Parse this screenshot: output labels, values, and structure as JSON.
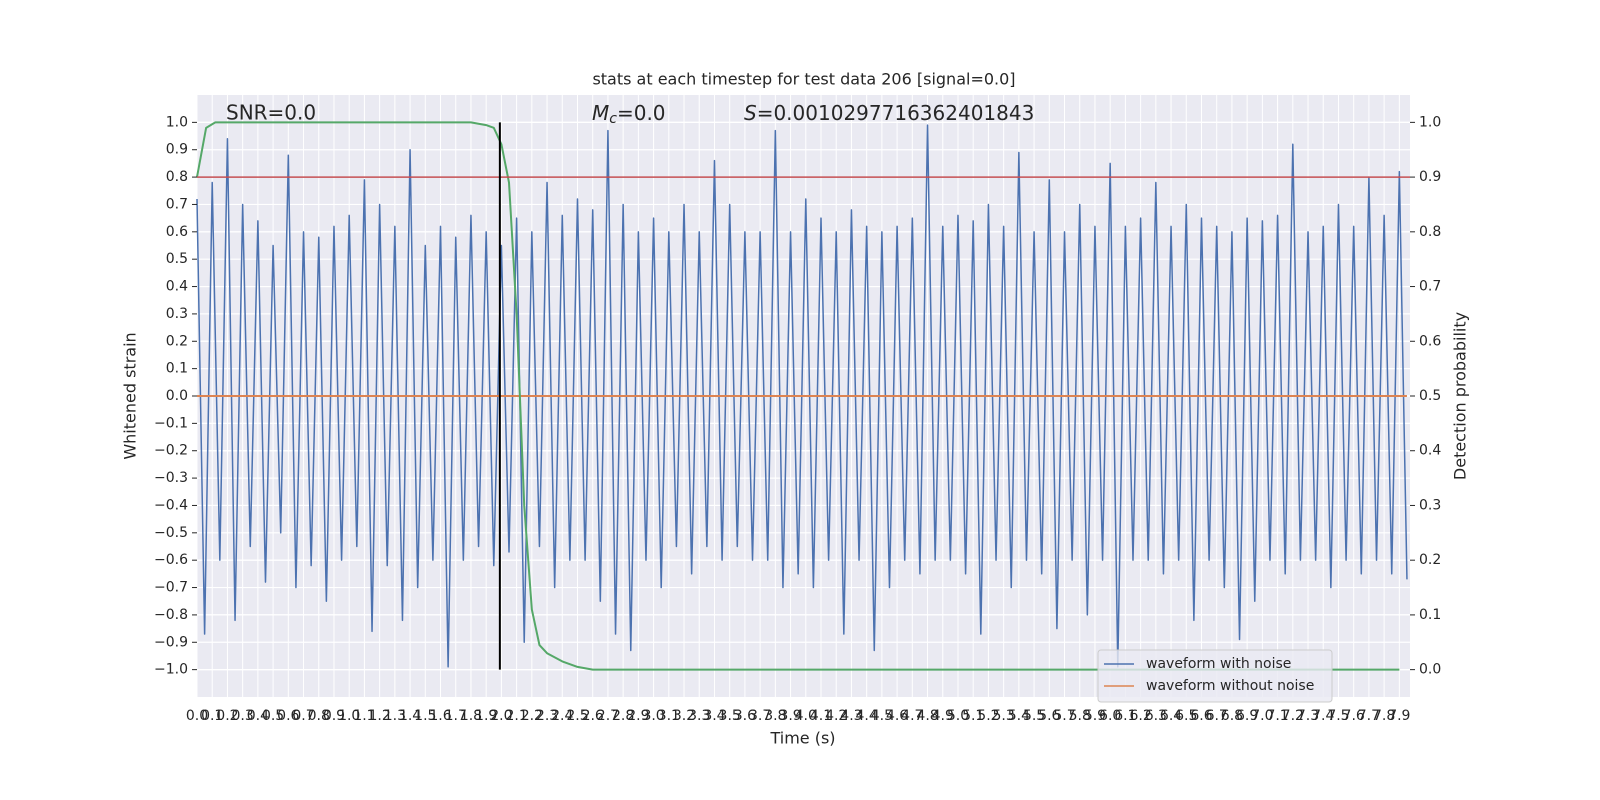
{
  "chart_data": {
    "type": "line",
    "title": "stats at each timestep for test data 206 [signal=0.0]",
    "xlabel": "Time (s)",
    "ylabel": "Whitened strain",
    "y2label": "Detection probability",
    "annotations": [
      "SNR=0.0",
      {
        "var": "M",
        "sub": "c",
        "rest": "=0.0"
      },
      {
        "var": "S",
        "rest": "=0.0010297716362401843"
      }
    ],
    "xlim": [
      0,
      7.97
    ],
    "ylim": [
      -1.1,
      1.1
    ],
    "y2lim": [
      -0.05,
      1.05
    ],
    "grid": true,
    "legend": "lower right",
    "xticks": [
      {
        "value": 0,
        "label": "0.0"
      },
      0.1,
      0.2,
      0.3,
      0.4,
      0.5,
      0.6,
      0.7,
      0.8,
      0.9,
      {
        "value": 1,
        "label": "1.0"
      },
      1.1,
      1.2,
      1.3,
      1.4,
      1.5,
      1.6,
      1.7,
      1.8,
      1.9,
      {
        "value": 2,
        "label": "2.0"
      },
      2.1,
      2.2,
      2.3,
      2.4,
      2.5,
      2.6,
      2.7,
      2.8,
      2.9,
      {
        "value": 3,
        "label": "3.0"
      },
      3.1,
      3.2,
      3.3,
      3.4,
      3.5,
      3.6,
      3.7,
      3.8,
      3.9,
      {
        "value": 4,
        "label": "4.0"
      },
      4.1,
      4.2,
      4.3,
      4.4,
      4.5,
      4.6,
      4.7,
      4.8,
      4.9,
      {
        "value": 5,
        "label": "5.0"
      },
      5.1,
      5.2,
      5.3,
      5.4,
      5.5,
      5.6,
      5.7,
      5.8,
      5.9,
      {
        "value": 6,
        "label": "6.0"
      },
      6.1,
      6.2,
      6.3,
      6.4,
      6.5,
      6.6,
      6.7,
      6.8,
      6.9,
      {
        "value": 7,
        "label": "7.0"
      },
      7.1,
      7.2,
      7.3,
      7.4,
      7.5,
      7.6,
      7.7,
      7.8,
      7.9
    ],
    "yticks": [
      {
        "value": -1,
        "label": "−1.0"
      },
      {
        "value": -0.9,
        "label": "−0.9"
      },
      {
        "value": -0.8,
        "label": "−0.8"
      },
      {
        "value": -0.7,
        "label": "−0.7"
      },
      {
        "value": -0.6,
        "label": "−0.6"
      },
      {
        "value": -0.5,
        "label": "−0.5"
      },
      {
        "value": -0.4,
        "label": "−0.4"
      },
      {
        "value": -0.3,
        "label": "−0.3"
      },
      {
        "value": -0.2,
        "label": "−0.2"
      },
      {
        "value": -0.1,
        "label": "−0.1"
      },
      {
        "value": 0,
        "label": "0.0"
      },
      0.1,
      0.2,
      0.3,
      0.4,
      0.5,
      0.6,
      0.7,
      0.8,
      0.9,
      {
        "value": 1,
        "label": "1.0"
      }
    ],
    "y2ticks": [
      {
        "value": 0,
        "label": "0.0"
      },
      0.1,
      0.2,
      0.3,
      0.4,
      0.5,
      0.6,
      0.7,
      0.8,
      0.9,
      {
        "value": 1,
        "label": "1.0"
      }
    ],
    "hlines": [
      {
        "y": 0.9,
        "axis": "y2",
        "color": "#c44e52"
      }
    ],
    "vlines": [
      {
        "x": 1.99,
        "ymin": -1,
        "ymax": 1,
        "color": "#000000"
      }
    ],
    "series": [
      {
        "name": "waveform with noise",
        "color": "#4c72b0",
        "x": [
          0,
          0.05,
          0.1,
          0.15,
          0.2,
          0.25,
          0.3,
          0.35,
          0.4,
          0.45,
          0.5,
          0.55,
          0.6,
          0.65,
          0.7,
          0.75,
          0.8,
          0.85,
          0.9,
          0.95,
          1,
          1.05,
          1.1,
          1.15,
          1.2,
          1.25,
          1.3,
          1.35,
          1.4,
          1.45,
          1.5,
          1.55,
          1.6,
          1.65,
          1.7,
          1.75,
          1.8,
          1.85,
          1.9,
          1.95,
          2,
          2.05,
          2.1,
          2.15,
          2.2,
          2.25,
          2.3,
          2.35,
          2.4,
          2.45,
          2.5,
          2.55,
          2.6,
          2.65,
          2.7,
          2.75,
          2.8,
          2.85,
          2.9,
          2.95,
          3,
          3.05,
          3.1,
          3.15,
          3.2,
          3.25,
          3.3,
          3.35,
          3.4,
          3.45,
          3.5,
          3.55,
          3.6,
          3.65,
          3.7,
          3.75,
          3.8,
          3.85,
          3.9,
          3.95,
          4,
          4.05,
          4.1,
          4.15,
          4.2,
          4.25,
          4.3,
          4.35,
          4.4,
          4.45,
          4.5,
          4.55,
          4.6,
          4.65,
          4.7,
          4.75,
          4.8,
          4.85,
          4.9,
          4.95,
          5,
          5.05,
          5.1,
          5.15,
          5.2,
          5.25,
          5.3,
          5.35,
          5.4,
          5.45,
          5.5,
          5.55,
          5.6,
          5.65,
          5.7,
          5.75,
          5.8,
          5.85,
          5.9,
          5.95,
          6,
          6.05,
          6.1,
          6.15,
          6.2,
          6.25,
          6.3,
          6.35,
          6.4,
          6.45,
          6.5,
          6.55,
          6.6,
          6.65,
          6.7,
          6.75,
          6.8,
          6.85,
          6.9,
          6.95,
          7,
          7.05,
          7.1,
          7.15,
          7.2,
          7.25,
          7.3,
          7.35,
          7.4,
          7.45,
          7.5,
          7.55,
          7.6,
          7.65,
          7.7,
          7.75,
          7.8,
          7.85,
          7.9,
          7.95
        ],
        "values": [
          0.72,
          -0.87,
          0.78,
          -0.6,
          0.94,
          -0.82,
          0.7,
          -0.55,
          0.64,
          -0.68,
          0.55,
          -0.5,
          0.88,
          -0.7,
          0.6,
          -0.62,
          0.58,
          -0.75,
          0.62,
          -0.6,
          0.66,
          -0.55,
          0.79,
          -0.86,
          0.7,
          -0.62,
          0.62,
          -0.82,
          0.9,
          -0.7,
          0.55,
          -0.6,
          0.62,
          -0.99,
          0.58,
          -0.6,
          0.66,
          -0.55,
          0.6,
          -0.62,
          0.55,
          -0.57,
          0.65,
          -0.9,
          0.6,
          -0.55,
          0.78,
          -0.7,
          0.66,
          -0.6,
          0.72,
          -0.6,
          0.68,
          -0.75,
          0.97,
          -0.87,
          0.7,
          -0.93,
          0.6,
          -0.6,
          0.65,
          -0.7,
          0.6,
          -0.55,
          0.7,
          -0.65,
          0.6,
          -0.55,
          0.86,
          -0.6,
          0.7,
          -0.55,
          0.6,
          -0.6,
          0.6,
          -0.6,
          0.97,
          -0.7,
          0.6,
          -0.65,
          0.72,
          -0.7,
          0.65,
          -0.6,
          0.6,
          -0.87,
          0.68,
          -0.6,
          0.62,
          -0.93,
          0.6,
          -0.7,
          0.62,
          -0.6,
          0.65,
          -0.65,
          0.99,
          -0.6,
          0.62,
          -0.6,
          0.66,
          -0.65,
          0.64,
          -0.87,
          0.7,
          -0.6,
          0.62,
          -0.7,
          0.89,
          -0.6,
          0.6,
          -0.65,
          0.79,
          -0.85,
          0.6,
          -0.6,
          0.7,
          -0.8,
          0.62,
          -0.6,
          0.85,
          -0.99,
          0.62,
          -0.6,
          0.65,
          -0.6,
          0.78,
          -0.65,
          0.62,
          -0.6,
          0.7,
          -0.82,
          0.65,
          -0.6,
          0.62,
          -0.7,
          0.6,
          -0.89,
          0.65,
          -0.75,
          0.64,
          -0.6,
          0.66,
          -0.65,
          0.92,
          -0.6,
          0.6,
          -0.6,
          0.62,
          -0.7,
          0.7,
          -0.6,
          0.62,
          -0.65,
          0.8,
          -0.6,
          0.66,
          -0.65,
          0.82,
          -0.67
        ]
      },
      {
        "name": "waveform without noise",
        "color": "#dd8452",
        "x": [
          0,
          7.95
        ],
        "values": [
          0,
          0
        ]
      },
      {
        "color": "#55a868",
        "axis": "y2",
        "x": [
          0,
          0.06,
          0.12,
          0.2,
          0.5,
          1,
          1.5,
          1.8,
          1.9,
          1.95,
          2,
          2.05,
          2.1,
          2.15,
          2.2,
          2.25,
          2.3,
          2.4,
          2.5,
          2.6,
          2.8,
          3.5,
          5,
          7.9
        ],
        "values": [
          0.9,
          0.99,
          1,
          1,
          1,
          1,
          1,
          1,
          0.995,
          0.99,
          0.96,
          0.89,
          0.65,
          0.3,
          0.11,
          0.045,
          0.03,
          0.015,
          0.005,
          0,
          0,
          0,
          0,
          0
        ]
      }
    ]
  }
}
